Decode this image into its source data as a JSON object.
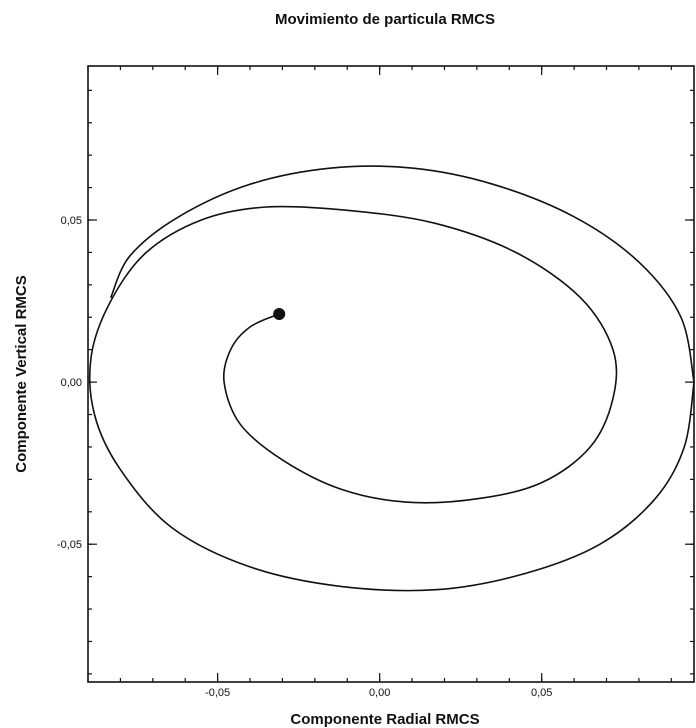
{
  "chart_data": {
    "type": "line",
    "title": "Movimiento de particula RMCS",
    "xlabel": "Componente Radial RMCS",
    "ylabel": "Componente Vertical RMCS",
    "xlim": [
      -0.09,
      0.097
    ],
    "ylim": [
      -0.0925,
      0.0975
    ],
    "xticks": [
      -0.05,
      0.0,
      0.05
    ],
    "yticks": [
      -0.05,
      0.0,
      0.05
    ],
    "xtick_labels": [
      "-0,05",
      "0,00",
      "0,05"
    ],
    "ytick_labels": [
      "-0,05",
      "0,00",
      "0,05"
    ],
    "minor_tick_step": 0.01,
    "grid": false,
    "series": [
      {
        "values": [
          [
            0.097,
            0.0
          ],
          [
            0.094,
            -0.02
          ],
          [
            0.085,
            -0.036
          ],
          [
            0.068,
            -0.05
          ],
          [
            0.045,
            -0.059
          ],
          [
            0.018,
            -0.064
          ],
          [
            -0.012,
            -0.063
          ],
          [
            -0.04,
            -0.057
          ],
          [
            -0.064,
            -0.045
          ],
          [
            -0.08,
            -0.027
          ],
          [
            -0.088,
            -0.01
          ],
          [
            -0.089,
            0.008
          ],
          [
            -0.083,
            0.025
          ],
          [
            -0.072,
            0.04
          ],
          [
            -0.055,
            0.05
          ],
          [
            -0.035,
            0.054
          ],
          [
            -0.01,
            0.053
          ],
          [
            0.017,
            0.049
          ],
          [
            0.042,
            0.04
          ],
          [
            0.062,
            0.026
          ],
          [
            0.072,
            0.01
          ],
          [
            0.072,
            -0.005
          ],
          [
            0.065,
            -0.02
          ],
          [
            0.05,
            -0.031
          ],
          [
            0.03,
            -0.036
          ],
          [
            0.008,
            -0.037
          ],
          [
            -0.012,
            -0.033
          ],
          [
            -0.03,
            -0.024
          ],
          [
            -0.043,
            -0.013
          ],
          [
            -0.048,
            0.0
          ],
          [
            -0.046,
            0.01
          ],
          [
            -0.04,
            0.017
          ],
          [
            -0.031,
            0.021
          ]
        ]
      },
      {
        "values": [
          [
            0.097,
            0.0
          ],
          [
            0.093,
            0.02
          ],
          [
            0.08,
            0.037
          ],
          [
            0.06,
            0.051
          ],
          [
            0.035,
            0.061
          ],
          [
            0.01,
            0.066
          ],
          [
            -0.015,
            0.066
          ],
          [
            -0.04,
            0.061
          ],
          [
            -0.062,
            0.051
          ],
          [
            -0.077,
            0.039
          ],
          [
            -0.083,
            0.026
          ]
        ]
      }
    ],
    "marker_point": [
      -0.031,
      0.021
    ]
  }
}
